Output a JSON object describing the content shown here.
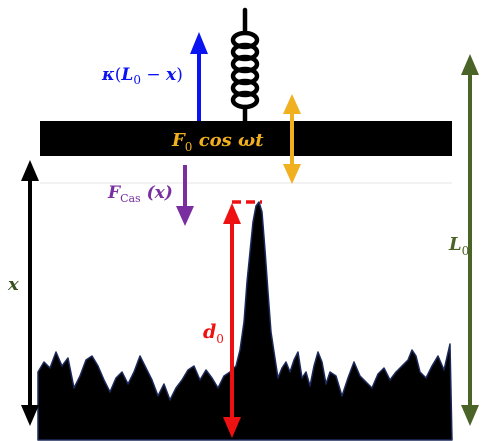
{
  "labels": {
    "spring_force": {
      "kappa": "κ",
      "open": "(",
      "L": "L",
      "L_sub": "0",
      "minus": " − ",
      "x": "x",
      "close": ")"
    },
    "drive_force": {
      "F": "F",
      "F_sub": "0",
      "rest": " cos ωt"
    },
    "casimir_force": {
      "F": "F",
      "F_sub": "Cas",
      "arg": " (x)"
    },
    "separation": "x",
    "d0": {
      "d": "d",
      "d_sub": "0"
    },
    "L0": {
      "L": "L",
      "L_sub": "0"
    }
  },
  "colors": {
    "plate": "#000000",
    "spring_force": "#0a14f0",
    "drive_force": "#f0b020",
    "casimir_force": "#7a2fa0",
    "separation": "#000000",
    "d0": "#ee1111",
    "L0": "#4a6428",
    "surface_fill": "#000000",
    "surface_edge": "#1c2a5a"
  }
}
